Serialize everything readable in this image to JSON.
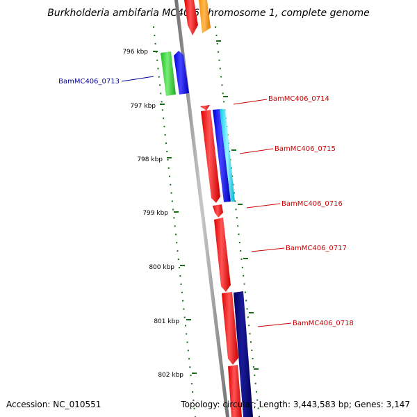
{
  "title": "Burkholderia ambifaria MC40-6 chromosome 1, complete genome",
  "footer": {
    "accession": "Accession: NC_010551",
    "topology": "Topology: circular; Length: 3,443,583 bp; Genes: 3,147"
  },
  "colors": {
    "backbone": "#8c8c8c",
    "label_red": "#cc0000",
    "label_blue": "#000099",
    "tick": "#1a6b1a"
  },
  "kbp_ticks": [
    "796 kbp",
    "797 kbp",
    "798 kbp",
    "799 kbp",
    "800 kbp",
    "801 kbp",
    "802 kbp"
  ],
  "genes": [
    {
      "id": "BamMC406_0713",
      "labelled": true,
      "color": "#000099"
    },
    {
      "id": "BamMC406_0714",
      "labelled": true,
      "color": "#cc0000"
    },
    {
      "id": "BamMC406_0715",
      "labelled": true,
      "color": "#cc0000"
    },
    {
      "id": "BamMC406_0716",
      "labelled": true,
      "color": "#cc0000"
    },
    {
      "id": "BamMC406_0717",
      "labelled": true,
      "color": "#cc0000"
    },
    {
      "id": "BamMC406_0718",
      "labelled": true,
      "color": "#cc0000"
    }
  ]
}
